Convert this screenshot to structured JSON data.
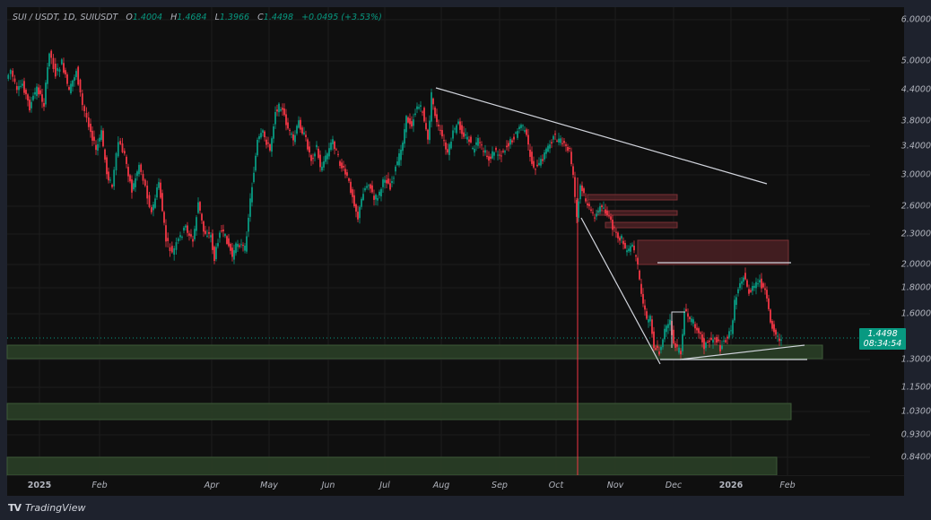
{
  "header": {
    "symbol": "SUI / USDT, 1D, SUIUSDT",
    "o_label": "O",
    "o_value": "1.4004",
    "h_label": "H",
    "h_value": "1.4684",
    "l_label": "L",
    "l_value": "1.3966",
    "c_label": "C",
    "c_value": "1.4498",
    "change": "+0.0495 (+3.53%)"
  },
  "price_label": {
    "price": "1.4498",
    "countdown": "08:34:54"
  },
  "brand": {
    "logo": "TV",
    "name": "TradingView"
  },
  "colors": {
    "up": "#089981",
    "down": "#f23645",
    "zone_green": "#2a3f27",
    "zone_red": "#4a2023",
    "line": "#d1d4dc"
  },
  "chart_data": {
    "type": "candlestick",
    "title": "SUI / USDT, 1D, SUIUSDT",
    "scale": "log",
    "ylim": [
      0.8,
      6.2
    ],
    "y_ticks": [
      {
        "label": "6.0000",
        "y": 14
      },
      {
        "label": "5.0000",
        "y": 60
      },
      {
        "label": "4.4000",
        "y": 92
      },
      {
        "label": "3.8000",
        "y": 127
      },
      {
        "label": "3.4000",
        "y": 155
      },
      {
        "label": "3.0000",
        "y": 187
      },
      {
        "label": "2.6000",
        "y": 222
      },
      {
        "label": "2.3000",
        "y": 253
      },
      {
        "label": "2.0000",
        "y": 287
      },
      {
        "label": "1.8000",
        "y": 313
      },
      {
        "label": "1.6000",
        "y": 342
      },
      {
        "label": "1.3000",
        "y": 393
      },
      {
        "label": "1.1500",
        "y": 424
      },
      {
        "label": "1.0300",
        "y": 451
      },
      {
        "label": "0.9300",
        "y": 477
      },
      {
        "label": "0.8400",
        "y": 502
      }
    ],
    "x_ticks": [
      {
        "label": "2025",
        "x": 36,
        "bold": true
      },
      {
        "label": "Feb",
        "x": 103
      },
      {
        "label": "Apr",
        "x": 228
      },
      {
        "label": "May",
        "x": 292
      },
      {
        "label": "Jun",
        "x": 358
      },
      {
        "label": "Jul",
        "x": 421
      },
      {
        "label": "Aug",
        "x": 484
      },
      {
        "label": "Sep",
        "x": 549
      },
      {
        "label": "Oct",
        "x": 612
      },
      {
        "label": "Nov",
        "x": 678
      },
      {
        "label": "Dec",
        "x": 743
      },
      {
        "label": "2026",
        "x": 807,
        "bold": true
      },
      {
        "label": "Feb",
        "x": 870
      }
    ],
    "price_path": [
      [
        0,
        80
      ],
      [
        5,
        70
      ],
      [
        12,
        95
      ],
      [
        18,
        85
      ],
      [
        26,
        112
      ],
      [
        34,
        90
      ],
      [
        42,
        108
      ],
      [
        48,
        48
      ],
      [
        55,
        75
      ],
      [
        62,
        62
      ],
      [
        70,
        95
      ],
      [
        78,
        70
      ],
      [
        85,
        110
      ],
      [
        92,
        130
      ],
      [
        100,
        160
      ],
      [
        106,
        140
      ],
      [
        112,
        185
      ],
      [
        118,
        200
      ],
      [
        125,
        150
      ],
      [
        132,
        165
      ],
      [
        140,
        205
      ],
      [
        148,
        175
      ],
      [
        155,
        200
      ],
      [
        162,
        230
      ],
      [
        170,
        195
      ],
      [
        178,
        260
      ],
      [
        185,
        275
      ],
      [
        192,
        260
      ],
      [
        200,
        245
      ],
      [
        208,
        262
      ],
      [
        214,
        218
      ],
      [
        220,
        250
      ],
      [
        228,
        255
      ],
      [
        232,
        282
      ],
      [
        238,
        248
      ],
      [
        246,
        260
      ],
      [
        252,
        278
      ],
      [
        258,
        262
      ],
      [
        266,
        270
      ],
      [
        272,
        215
      ],
      [
        280,
        150
      ],
      [
        286,
        140
      ],
      [
        294,
        160
      ],
      [
        300,
        115
      ],
      [
        306,
        110
      ],
      [
        314,
        135
      ],
      [
        320,
        150
      ],
      [
        326,
        128
      ],
      [
        334,
        148
      ],
      [
        340,
        170
      ],
      [
        346,
        155
      ],
      [
        350,
        180
      ],
      [
        356,
        168
      ],
      [
        364,
        148
      ],
      [
        372,
        175
      ],
      [
        380,
        190
      ],
      [
        386,
        210
      ],
      [
        392,
        235
      ],
      [
        398,
        205
      ],
      [
        404,
        195
      ],
      [
        410,
        215
      ],
      [
        416,
        208
      ],
      [
        422,
        190
      ],
      [
        428,
        200
      ],
      [
        434,
        180
      ],
      [
        440,
        160
      ],
      [
        446,
        125
      ],
      [
        452,
        130
      ],
      [
        458,
        110
      ],
      [
        464,
        115
      ],
      [
        470,
        150
      ],
      [
        474,
        98
      ],
      [
        480,
        130
      ],
      [
        486,
        145
      ],
      [
        492,
        165
      ],
      [
        498,
        140
      ],
      [
        504,
        130
      ],
      [
        510,
        142
      ],
      [
        516,
        148
      ],
      [
        520,
        160
      ],
      [
        526,
        150
      ],
      [
        532,
        160
      ],
      [
        538,
        170
      ],
      [
        544,
        160
      ],
      [
        550,
        165
      ],
      [
        556,
        158
      ],
      [
        562,
        150
      ],
      [
        568,
        142
      ],
      [
        574,
        130
      ],
      [
        580,
        145
      ],
      [
        586,
        175
      ],
      [
        592,
        180
      ],
      [
        598,
        168
      ],
      [
        604,
        155
      ],
      [
        610,
        145
      ],
      [
        616,
        148
      ],
      [
        622,
        155
      ],
      [
        628,
        160
      ],
      [
        632,
        190
      ],
      [
        636,
        235
      ],
      [
        640,
        200
      ],
      [
        644,
        210
      ],
      [
        648,
        220
      ],
      [
        652,
        230
      ],
      [
        658,
        232
      ],
      [
        664,
        220
      ],
      [
        668,
        228
      ],
      [
        674,
        240
      ],
      [
        680,
        255
      ],
      [
        686,
        258
      ],
      [
        692,
        275
      ],
      [
        698,
        265
      ],
      [
        704,
        290
      ],
      [
        708,
        320
      ],
      [
        714,
        350
      ],
      [
        718,
        345
      ],
      [
        722,
        378
      ],
      [
        728,
        385
      ],
      [
        734,
        360
      ],
      [
        740,
        352
      ],
      [
        744,
        375
      ],
      [
        748,
        382
      ],
      [
        752,
        385
      ],
      [
        756,
        340
      ],
      [
        760,
        345
      ],
      [
        766,
        352
      ],
      [
        772,
        360
      ],
      [
        778,
        378
      ],
      [
        784,
        372
      ],
      [
        790,
        368
      ],
      [
        796,
        380
      ],
      [
        802,
        370
      ],
      [
        808,
        362
      ],
      [
        812,
        330
      ],
      [
        818,
        305
      ],
      [
        822,
        300
      ],
      [
        828,
        318
      ],
      [
        834,
        312
      ],
      [
        840,
        306
      ],
      [
        846,
        318
      ],
      [
        852,
        350
      ],
      [
        858,
        365
      ],
      [
        864,
        372
      ]
    ],
    "annotations": {
      "descending_resistance": {
        "x1": 478,
        "y1": 90,
        "x2": 847,
        "y2": 197
      },
      "wedge_left_line": {
        "x1": 640,
        "y1": 235,
        "x2": 728,
        "y2": 398
      },
      "wedge_base_line": {
        "x1": 728,
        "y1": 393,
        "x2": 892,
        "y2": 393
      },
      "rising_support": {
        "x1": 750,
        "y1": 393,
        "x2": 889,
        "y2": 377
      },
      "horizontal_resistance": {
        "x1": 725,
        "y1": 285,
        "x2": 874,
        "y2": 285
      },
      "red_event_line_x": 636,
      "small_box": {
        "x1": 741,
        "y1": 340,
        "x2": 756,
        "y2": 340
      },
      "red_zones": [
        {
          "x1": 647,
          "y1": 209,
          "x2": 747,
          "y2": 215
        },
        {
          "x1": 657,
          "y1": 227,
          "x2": 747,
          "y2": 232
        },
        {
          "x1": 667,
          "y1": 240,
          "x2": 747,
          "y2": 246
        },
        {
          "x1": 703,
          "y1": 260,
          "x2": 871,
          "y2": 287
        }
      ],
      "green_zones": [
        {
          "x1": 0,
          "y1": 377,
          "x2": 909,
          "y2": 392,
          "price_range": "1.30-1.38"
        },
        {
          "x1": 0,
          "y1": 442,
          "x2": 874,
          "y2": 460,
          "price_range": "1.00-1.06"
        },
        {
          "x1": 0,
          "y1": 502,
          "x2": 858,
          "y2": 522,
          "price_range": "0.80-0.84"
        }
      ],
      "last_price_line_y": 369
    }
  }
}
